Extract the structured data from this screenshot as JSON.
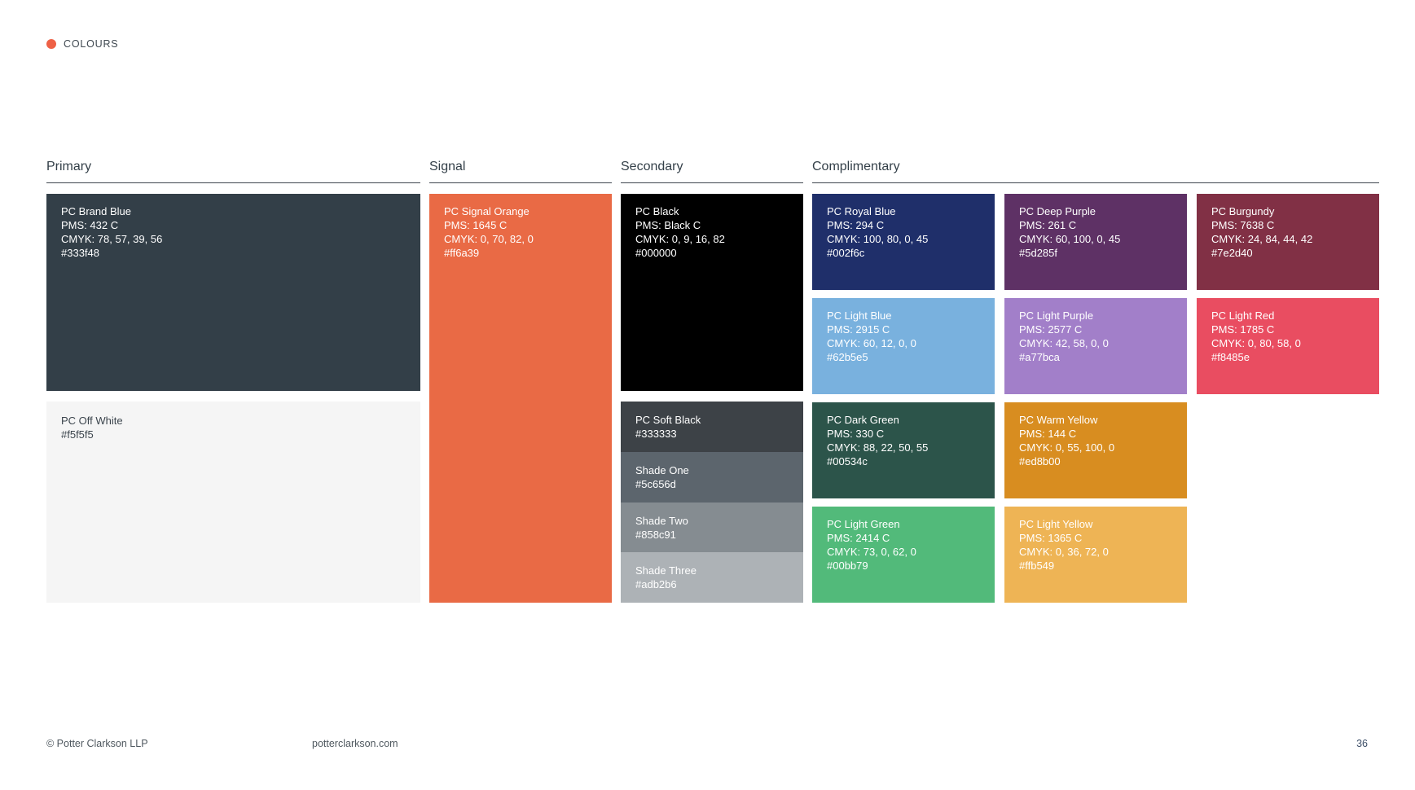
{
  "header": {
    "label": "COLOURS",
    "dot_color": "#ee6146"
  },
  "sections": {
    "primary": {
      "title": "Primary",
      "brand_blue": {
        "name": "PC Brand Blue",
        "pms": "PMS: 432 C",
        "cmyk": "CMYK: 78, 57, 39, 56",
        "hex": "#333f48",
        "bg": "#333f48"
      },
      "off_white": {
        "name": "PC Off White",
        "hex": "#f5f5f5",
        "bg": "#f5f5f5"
      }
    },
    "signal": {
      "title": "Signal",
      "signal_orange": {
        "name": "PC Signal Orange",
        "pms": "PMS: 1645 C",
        "cmyk": "CMYK: 0, 70, 82, 0",
        "hex": "#ff6a39",
        "bg": "#e96a45"
      }
    },
    "secondary": {
      "title": "Secondary",
      "black": {
        "name": "PC Black",
        "pms": "PMS: Black C",
        "cmyk": "CMYK: 0, 9, 16, 82",
        "hex": "#000000",
        "bg": "#000000"
      },
      "shades": [
        {
          "name": "PC Soft Black",
          "hex": "#333333",
          "bg": "#3d4247"
        },
        {
          "name": "Shade One",
          "hex": "#5c656d",
          "bg": "#5c656d"
        },
        {
          "name": "Shade Two",
          "hex": "#858c91",
          "bg": "#858c91"
        },
        {
          "name": "Shade Three",
          "hex": "#adb2b6",
          "bg": "#adb2b6"
        }
      ]
    },
    "complimentary": {
      "title": "Complimentary",
      "swatches": [
        {
          "name": "PC Royal Blue",
          "pms": "PMS: 294 C",
          "cmyk": "CMYK: 100, 80, 0, 45",
          "hex": "#002f6c",
          "bg": "#1f2f6a"
        },
        {
          "name": "PC Deep Purple",
          "pms": "PMS: 261 C",
          "cmyk": "CMYK: 60, 100, 0, 45",
          "hex": "#5d285f",
          "bg": "#5e3165"
        },
        {
          "name": "PC Burgundy",
          "pms": "PMS: 7638 C",
          "cmyk": "CMYK: 24, 84, 44, 42",
          "hex": "#7e2d40",
          "bg": "#813045"
        },
        {
          "name": "PC Light Blue",
          "pms": "PMS: 2915 C",
          "cmyk": "CMYK: 60, 12, 0, 0",
          "hex": "#62b5e5",
          "bg": "#79b1de"
        },
        {
          "name": "PC Light Purple",
          "pms": "PMS: 2577 C",
          "cmyk": "CMYK: 42, 58, 0, 0",
          "hex": "#a77bca",
          "bg": "#a27fc9"
        },
        {
          "name": "PC Light Red",
          "pms": "PMS: 1785 C",
          "cmyk": "CMYK: 0, 80, 58, 0",
          "hex": "#f8485e",
          "bg": "#e94d61"
        },
        {
          "name": "PC Dark Green",
          "pms": "PMS: 330 C",
          "cmyk": "CMYK: 88, 22, 50, 55",
          "hex": "#00534c",
          "bg": "#2c544a"
        },
        {
          "name": "PC Warm Yellow",
          "pms": "PMS: 144 C",
          "cmyk": "CMYK: 0, 55, 100, 0",
          "hex": "#ed8b00",
          "bg": "#d88d20"
        },
        {
          "name": "PC Light Green",
          "pms": "PMS: 2414 C",
          "cmyk": "CMYK: 73, 0, 62, 0",
          "hex": "#00bb79",
          "bg": "#52ba7a"
        },
        {
          "name": "PC Light Yellow",
          "pms": "PMS: 1365 C",
          "cmyk": "CMYK: 0, 36, 72, 0",
          "hex": "#ffb549",
          "bg": "#eeb455"
        }
      ]
    }
  },
  "footer": {
    "copyright": "© Potter Clarkson LLP",
    "website": "potterclarkson.com",
    "page_number": "36"
  }
}
